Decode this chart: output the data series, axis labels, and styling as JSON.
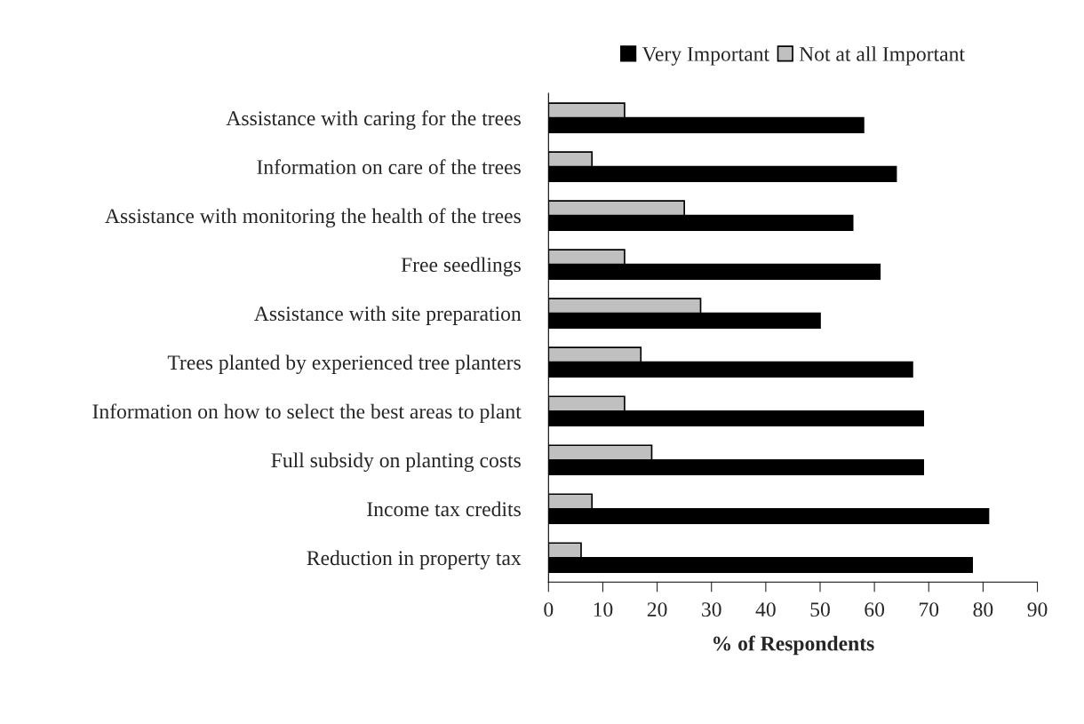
{
  "chart_data": {
    "type": "bar",
    "orientation": "horizontal",
    "xlabel": "% of Respondents",
    "categories": [
      "Assistance with caring for the trees",
      "Information on care of the trees",
      "Assistance with monitoring the health of the trees",
      "Free seedlings",
      "Assistance with site preparation",
      "Trees planted by experienced tree planters",
      "Information on how to select the best areas to plant",
      "Full subsidy on planting costs",
      "Income tax credits",
      "Reduction in property tax"
    ],
    "series": [
      {
        "name": "Very Important",
        "color": "#000000",
        "values": [
          58,
          64,
          56,
          61,
          50,
          67,
          69,
          69,
          81,
          78
        ]
      },
      {
        "name": "Not at all Important",
        "color": "#c0c0c0",
        "values": [
          14,
          8,
          25,
          14,
          28,
          17,
          14,
          19,
          8,
          6
        ]
      }
    ],
    "xlim": [
      0,
      90
    ],
    "xticks": [
      0,
      10,
      20,
      30,
      40,
      50,
      60,
      70,
      80,
      90
    ],
    "grid": false,
    "legend": "top"
  }
}
